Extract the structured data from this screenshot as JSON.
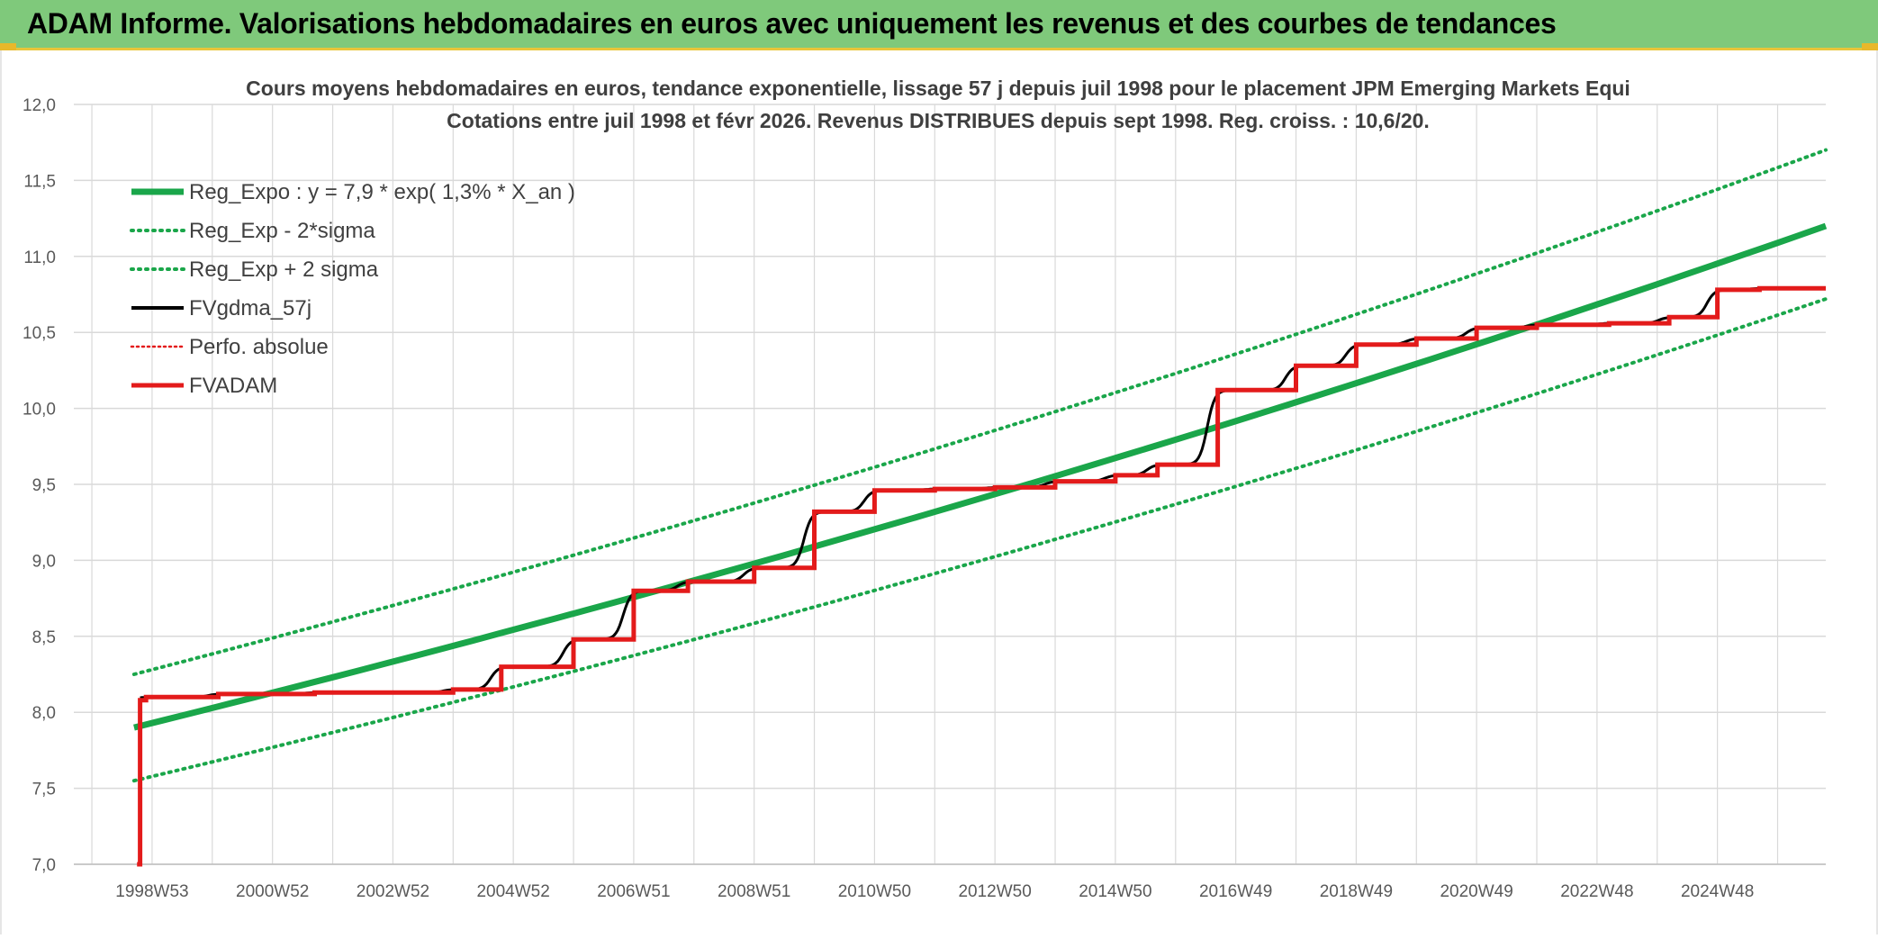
{
  "header": {
    "title": "ADAM Informe. Valorisations hebdomadaires en euros avec uniquement les revenus et des courbes de tendances"
  },
  "colors": {
    "header_bg": "#7fc97b",
    "accent_bar": "#e8b82a",
    "reg_green": "#1aa64a",
    "fvadam_red": "#e31b1b",
    "fvgdma_black": "#000000",
    "grid": "#d9d9d9"
  },
  "chart_data": {
    "type": "line",
    "title": "Cours moyens hebdomadaires en euros, tendance exponentielle, lissage 57 j depuis juil 1998 pour le placement JPM Emerging Markets Equi",
    "subtitle": "Cotations entre juil 1998 et févr 2026. Revenus DISTRIBUES depuis sept 1998. Reg. croiss. : 10,6/20.",
    "xlabel": "",
    "ylabel": "",
    "ylim": [
      7.0,
      12.0
    ],
    "xlim": [
      1997.5,
      2026.6
    ],
    "y_ticks": [
      "7,0",
      "7,5",
      "8,0",
      "8,5",
      "9,0",
      "9,5",
      "10,0",
      "10,5",
      "11,0",
      "11,5",
      "12,0"
    ],
    "x_ticks": [
      {
        "label": "1998W53",
        "x": 1998.8
      },
      {
        "label": "2000W52",
        "x": 2000.8
      },
      {
        "label": "2002W52",
        "x": 2002.8
      },
      {
        "label": "2004W52",
        "x": 2004.8
      },
      {
        "label": "2006W51",
        "x": 2006.8
      },
      {
        "label": "2008W51",
        "x": 2008.8
      },
      {
        "label": "2010W50",
        "x": 2010.8
      },
      {
        "label": "2012W50",
        "x": 2012.8
      },
      {
        "label": "2014W50",
        "x": 2014.8
      },
      {
        "label": "2016W49",
        "x": 2016.8
      },
      {
        "label": "2018W49",
        "x": 2018.8
      },
      {
        "label": "2020W49",
        "x": 2020.8
      },
      {
        "label": "2022W48",
        "x": 2022.8
      },
      {
        "label": "2024W48",
        "x": 2024.8
      }
    ],
    "grid": true,
    "legend_position": "top-left",
    "legend": [
      {
        "key": "reg",
        "label": "Reg_Expo : y = 7,9 * exp( 1,3% *  X_an )"
      },
      {
        "key": "reg_minus",
        "label": "Reg_Exp - 2*sigma"
      },
      {
        "key": "reg_plus",
        "label": "Reg_Exp + 2 sigma"
      },
      {
        "key": "fvgdma",
        "label": "FVgdma_57j"
      },
      {
        "key": "perfo",
        "label": "Perfo. absolue"
      },
      {
        "key": "fvadam",
        "label": "FVADAM"
      }
    ],
    "series": [
      {
        "name": "Reg_Expo : y = 7,9 * exp( 1,3% *  X_an )",
        "key": "reg",
        "style": "solid",
        "x": [
          1998.5,
          2026.6
        ],
        "y": [
          7.9,
          11.2
        ]
      },
      {
        "name": "Reg_Exp - 2*sigma",
        "key": "reg_minus",
        "style": "dotted",
        "x": [
          1998.5,
          2026.6
        ],
        "y": [
          7.55,
          10.72
        ]
      },
      {
        "name": "Reg_Exp + 2 sigma",
        "key": "reg_plus",
        "style": "dotted",
        "x": [
          1998.5,
          2026.6
        ],
        "y": [
          8.25,
          11.7
        ]
      },
      {
        "name": "FVADAM",
        "key": "fvadam",
        "style": "step",
        "steps": [
          [
            1998.55,
            7.0
          ],
          [
            1998.6,
            8.08
          ],
          [
            1998.7,
            8.1
          ],
          [
            1999.0,
            8.1
          ],
          [
            1999.9,
            8.12
          ],
          [
            2001.5,
            8.13
          ],
          [
            2002.7,
            8.13
          ],
          [
            2003.8,
            8.15
          ],
          [
            2004.6,
            8.3
          ],
          [
            2005.8,
            8.48
          ],
          [
            2006.8,
            8.8
          ],
          [
            2007.7,
            8.86
          ],
          [
            2008.8,
            8.95
          ],
          [
            2009.8,
            9.32
          ],
          [
            2010.8,
            9.46
          ],
          [
            2011.8,
            9.47
          ],
          [
            2012.8,
            9.48
          ],
          [
            2013.8,
            9.52
          ],
          [
            2014.8,
            9.56
          ],
          [
            2015.5,
            9.63
          ],
          [
            2016.5,
            10.12
          ],
          [
            2017.8,
            10.28
          ],
          [
            2018.8,
            10.42
          ],
          [
            2019.8,
            10.46
          ],
          [
            2020.8,
            10.53
          ],
          [
            2021.8,
            10.55
          ],
          [
            2023.0,
            10.56
          ],
          [
            2024.0,
            10.6
          ],
          [
            2024.8,
            10.78
          ],
          [
            2025.5,
            10.79
          ],
          [
            2026.6,
            10.79
          ]
        ]
      },
      {
        "name": "FVgdma_57j",
        "key": "fvgdma",
        "style": "smoothed_step",
        "follows": "FVADAM",
        "lag_years": 0.35
      },
      {
        "name": "Perfo. absolue",
        "key": "perfo",
        "style": "dotted",
        "values": []
      }
    ]
  }
}
